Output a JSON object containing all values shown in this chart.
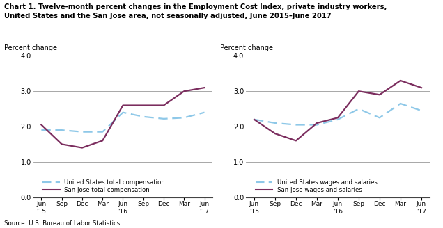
{
  "title_line1": "Chart 1. Twelve-month percent changes in the Employment Cost Index, private industry workers,",
  "title_line2": "United States and the San Jose area, not seasonally adjusted, June 2015–June 2017",
  "source": "Source: U.S. Bureau of Labor Statistics.",
  "ylabel": "Percent change",
  "x_labels": [
    "Jun\n'15",
    "Sep",
    "Dec",
    "Mar",
    "Jun\n'16",
    "Sep",
    "Dec",
    "Mar",
    "Jun\n'17"
  ],
  "x_positions": [
    0,
    1,
    2,
    3,
    4,
    5,
    6,
    7,
    8
  ],
  "ylim": [
    0.0,
    4.0
  ],
  "yticks": [
    0.0,
    1.0,
    2.0,
    3.0,
    4.0
  ],
  "left_chart": {
    "us_total_comp": [
      1.9,
      1.9,
      1.85,
      1.85,
      2.4,
      2.28,
      2.22,
      2.25,
      2.4
    ],
    "sj_total_comp": [
      2.05,
      1.5,
      1.4,
      1.6,
      2.6,
      2.6,
      2.6,
      3.0,
      3.1
    ],
    "legend": [
      "United States total compensation",
      "San Jose total compensation"
    ]
  },
  "right_chart": {
    "us_wages_sal": [
      2.2,
      2.1,
      2.05,
      2.05,
      2.2,
      2.5,
      2.25,
      2.65,
      2.45
    ],
    "sj_wages_sal": [
      2.2,
      1.8,
      1.6,
      2.1,
      2.25,
      3.0,
      2.9,
      3.3,
      3.1
    ],
    "legend": [
      "United States wages and salaries",
      "San Jose wages and salaries"
    ]
  },
  "us_color": "#8EC8E8",
  "sj_color": "#7B2D5E",
  "background_color": "#ffffff",
  "grid_color": "#999999"
}
